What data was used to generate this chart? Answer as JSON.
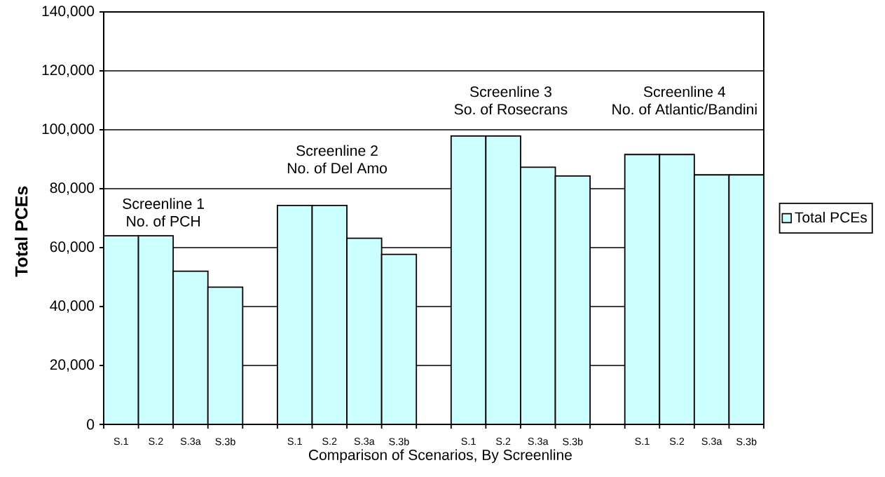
{
  "chart_data": {
    "type": "bar",
    "xlabel": "Comparison of Scenarios, By Screenline",
    "ylabel": "Total PCEs",
    "categories": [
      "S.1",
      "S.2",
      "S.3a",
      "S.3b",
      null,
      "S.1",
      "S.2",
      "S.3a",
      "S.3b",
      null,
      "S.1",
      "S.2",
      "S.3a",
      "S.3b",
      null,
      "S.1",
      "S.2",
      "S.3a",
      "S.3b"
    ],
    "series": [
      {
        "name": "Total PCEs",
        "color": "#ccffff",
        "values": [
          64000,
          64000,
          52000,
          46600,
          null,
          74300,
          74300,
          63200,
          57700,
          null,
          97900,
          97900,
          87300,
          84300,
          null,
          91600,
          91600,
          84700,
          84700
        ]
      }
    ],
    "ylim": [
      0,
      140000
    ],
    "yticks": [
      0,
      {
        "value": 20000,
        "label": "20,000"
      },
      {
        "value": 40000,
        "label": "40,000"
      },
      {
        "value": 60000,
        "label": "60,000"
      },
      {
        "value": 80000,
        "label": "80,000"
      },
      {
        "value": 100000,
        "label": "100,000"
      },
      {
        "value": 120000,
        "label": "120,000"
      },
      {
        "value": 140000,
        "label": "140,000"
      }
    ],
    "grid": "y",
    "legend": "right",
    "annotations": [
      "Screenline 1",
      "No. of PCH",
      "Screenline 2",
      "No. of Del Amo",
      "Screenline 3",
      "So. of Rosecrans",
      "Screenline 4",
      "No. of Atlantic/Bandini"
    ]
  }
}
